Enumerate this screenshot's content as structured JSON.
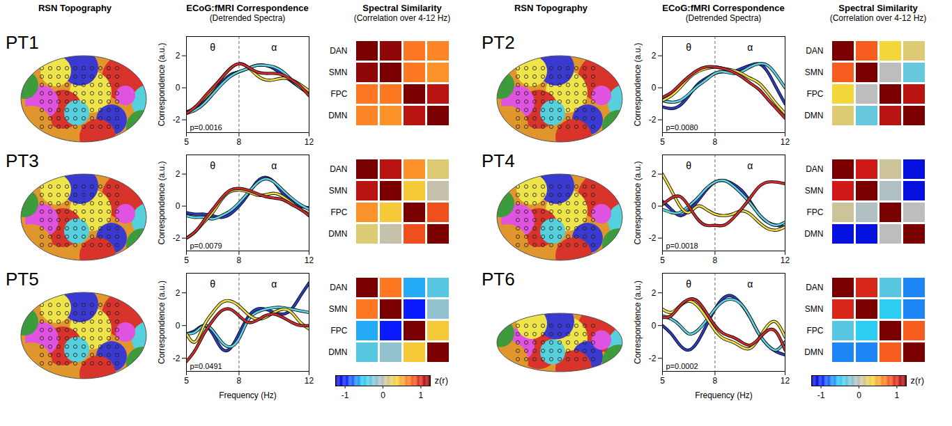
{
  "headers": [
    {
      "title": "RSN Topography"
    },
    {
      "title": "ECoG:fMRI Correspondence",
      "subtitle": "(Detrended Spectra)"
    },
    {
      "title": "Spectral Similarity",
      "subtitle": "(Correlation over 4-12 Hz)"
    }
  ],
  "panels": [
    "PT1",
    "PT2",
    "PT3",
    "PT4",
    "PT5",
    "PT6"
  ],
  "chart_data": [
    {
      "type": "line",
      "panel": "PT1",
      "ylabel": "Correspondence (a.u.)",
      "x": [
        5,
        5.5,
        6,
        6.5,
        7,
        7.5,
        8,
        8.5,
        9,
        9.5,
        10,
        10.5,
        11,
        11.5,
        12
      ],
      "xlim": [
        5,
        12
      ],
      "xticks": [
        5,
        8,
        12
      ],
      "ylim": [
        -2.8,
        3.2
      ],
      "yticks": [
        -2,
        0,
        2
      ],
      "bands": [
        {
          "label": "θ",
          "range": [
            4,
            8
          ]
        },
        {
          "label": "α",
          "range": [
            8,
            12
          ]
        }
      ],
      "annotation": "p=0.0016",
      "series": [
        {
          "color": "#2b3cc4",
          "values": [
            -1.5,
            -1.3,
            -0.9,
            -0.3,
            0.3,
            0.8,
            1.0,
            1.2,
            1.4,
            1.4,
            1.2,
            0.8,
            0.4,
            0,
            -0.4
          ]
        },
        {
          "color": "#5fd3e6",
          "values": [
            -1.6,
            -1.4,
            -1,
            -0.4,
            0.2,
            0.7,
            1.0,
            1.2,
            1.4,
            1.4,
            1.3,
            1.0,
            0.5,
            0,
            -0.3
          ]
        },
        {
          "color": "#f0df45",
          "values": [
            -1.6,
            -1.2,
            -0.7,
            -0.1,
            0.6,
            1.2,
            1.5,
            1.3,
            0.8,
            0.5,
            0.5,
            0.6,
            0.5,
            0.2,
            -0.2
          ]
        },
        {
          "color": "#d22b2b",
          "values": [
            -1.6,
            -1.2,
            -0.6,
            0,
            0.6,
            1.2,
            1.5,
            1.3,
            1.0,
            0.9,
            0.9,
            0.8,
            0.5,
            0.1,
            -0.5
          ]
        }
      ]
    },
    {
      "type": "heatmap",
      "panel": "PT1",
      "labels": [
        "DAN",
        "SMN",
        "FPC",
        "DMN"
      ],
      "tick_labels": "y",
      "color_range": [
        -1.25,
        1.25
      ],
      "cells": [
        [
          1.25,
          1.2,
          0.7,
          0.65
        ],
        [
          1.2,
          1.25,
          0.7,
          0.6
        ],
        [
          0.7,
          0.7,
          1.25,
          1.1
        ],
        [
          0.65,
          0.6,
          1.1,
          1.25
        ]
      ]
    },
    {
      "type": "line",
      "panel": "PT2",
      "ylabel": "Correspondence (a.u.)",
      "x": [
        5,
        5.5,
        6,
        6.5,
        7,
        7.5,
        8,
        8.5,
        9,
        9.5,
        10,
        10.5,
        11,
        11.5,
        12
      ],
      "xlim": [
        5,
        12
      ],
      "xticks": [
        5,
        8,
        12
      ],
      "ylim": [
        -2.8,
        3.2
      ],
      "yticks": [
        -2,
        0,
        2
      ],
      "bands": [
        {
          "label": "θ",
          "range": [
            4,
            8
          ]
        },
        {
          "label": "α",
          "range": [
            8,
            12
          ]
        }
      ],
      "annotation": "p=0.0080",
      "series": [
        {
          "color": "#2b3cc4",
          "values": [
            -1.2,
            -1.3,
            -1.1,
            -0.5,
            0.2,
            0.6,
            0.9,
            1.0,
            1.0,
            1.2,
            1.4,
            1.5,
            1.0,
            0,
            -1.0
          ]
        },
        {
          "color": "#5fd3e6",
          "values": [
            -0.8,
            -0.9,
            -0.8,
            -0.4,
            0.1,
            0.5,
            0.9,
            1.0,
            0.9,
            1.0,
            1.3,
            1.5,
            1.4,
            0.8,
            0
          ]
        },
        {
          "color": "#f0df45",
          "values": [
            -0.8,
            -0.5,
            0,
            0.6,
            1.0,
            1.2,
            1.3,
            1.2,
            1.1,
            0.9,
            0.6,
            0.3,
            -0.3,
            -1.0,
            -1.6
          ]
        },
        {
          "color": "#d22b2b",
          "values": [
            -0.6,
            -0.3,
            0.2,
            0.7,
            1.1,
            1.3,
            1.3,
            1.2,
            1.0,
            0.7,
            0.3,
            -0.1,
            -0.7,
            -1.3,
            -1.9
          ]
        }
      ]
    },
    {
      "type": "heatmap",
      "panel": "PT2",
      "labels": [
        "DAN",
        "SMN",
        "FPC",
        "DMN"
      ],
      "tick_labels": "y",
      "color_range": [
        -1.25,
        1.25
      ],
      "cells": [
        [
          1.25,
          0.8,
          0.35,
          0.2
        ],
        [
          0.8,
          1.25,
          0,
          -0.3
        ],
        [
          0.35,
          0,
          1.25,
          1.1
        ],
        [
          0.2,
          -0.3,
          1.1,
          1.25
        ]
      ]
    },
    {
      "type": "line",
      "panel": "PT3",
      "ylabel": "Correspondence (a.u.)",
      "x": [
        5,
        5.5,
        6,
        6.5,
        7,
        7.5,
        8,
        8.5,
        9,
        9.5,
        10,
        10.5,
        11,
        11.5,
        12
      ],
      "xlim": [
        5,
        12
      ],
      "xticks": [
        5,
        8,
        12
      ],
      "ylim": [
        -2.8,
        3.2
      ],
      "yticks": [
        -2,
        0,
        2
      ],
      "bands": [
        {
          "label": "θ",
          "range": [
            4,
            8
          ]
        },
        {
          "label": "α",
          "range": [
            8,
            12
          ]
        }
      ],
      "annotation": "p=0.0079",
      "series": [
        {
          "color": "#2b3cc4",
          "values": [
            -0.4,
            -0.5,
            -0.5,
            -0.6,
            -0.7,
            -0.5,
            0,
            0.7,
            1.5,
            1.8,
            1.5,
            0.8,
            0.3,
            0,
            -0.1
          ]
        },
        {
          "color": "#5fd3e6",
          "values": [
            -0.6,
            -0.7,
            -0.7,
            -0.8,
            -0.6,
            -0.3,
            0.2,
            0.8,
            1.4,
            1.7,
            1.5,
            1.0,
            0.5,
            0.1,
            -0.2
          ]
        },
        {
          "color": "#f0df45",
          "values": [
            -2.0,
            -1.6,
            -1.0,
            -0.4,
            0.4,
            0.9,
            1.0,
            0.9,
            0.7,
            0.7,
            0.8,
            0.6,
            0.2,
            -0.2,
            -0.5
          ]
        },
        {
          "color": "#d22b2b",
          "values": [
            -2.0,
            -1.6,
            -0.9,
            -0.2,
            0.5,
            1.0,
            1.1,
            1.0,
            0.8,
            0.6,
            0.5,
            0.4,
            0.1,
            -0.2,
            -0.6
          ]
        }
      ]
    },
    {
      "type": "heatmap",
      "panel": "PT3",
      "labels": [
        "DAN",
        "SMN",
        "FPC",
        "DMN"
      ],
      "tick_labels": "y",
      "color_range": [
        -1.25,
        1.25
      ],
      "cells": [
        [
          1.25,
          1.1,
          0.6,
          0.2
        ],
        [
          1.1,
          1.25,
          0.4,
          0.05
        ],
        [
          0.6,
          0.4,
          1.25,
          0.85
        ],
        [
          0.2,
          0.05,
          0.85,
          1.25
        ]
      ]
    },
    {
      "type": "line",
      "panel": "PT4",
      "ylabel": "Correspondence (a.u.)",
      "x": [
        5,
        5.5,
        6,
        6.5,
        7,
        7.5,
        8,
        8.5,
        9,
        9.5,
        10,
        10.5,
        11,
        11.5,
        12
      ],
      "xlim": [
        5,
        12
      ],
      "xticks": [
        5,
        8,
        12
      ],
      "ylim": [
        -2.8,
        3.2
      ],
      "yticks": [
        -2,
        0,
        2
      ],
      "bands": [
        {
          "label": "θ",
          "range": [
            4,
            8
          ]
        },
        {
          "label": "α",
          "range": [
            8,
            12
          ]
        }
      ],
      "annotation": "p=0.0018",
      "series": [
        {
          "color": "#2b3cc4",
          "values": [
            0.3,
            -0.2,
            -0.6,
            -0.3,
            0.3,
            1.0,
            1.5,
            1.6,
            1.4,
            1.0,
            0.3,
            -0.5,
            -1.0,
            -1.2,
            -1.3
          ]
        },
        {
          "color": "#5fd3e6",
          "values": [
            -0.2,
            -0.4,
            -0.4,
            0,
            0.5,
            1.1,
            1.5,
            1.6,
            1.3,
            0.8,
            0.2,
            -0.5,
            -1.0,
            -1.2,
            -1.0
          ]
        },
        {
          "color": "#f0df45",
          "values": [
            2.0,
            1.0,
            0,
            -0.4,
            0,
            -0.2,
            -0.5,
            -0.6,
            -0.5,
            -0.3,
            -0.5,
            -1.0,
            -1.4,
            -1.5,
            -1.3
          ]
        },
        {
          "color": "#d22b2b",
          "values": [
            0.1,
            0.5,
            0.6,
            0,
            -0.8,
            -1.2,
            -1.2,
            -1.2,
            -0.8,
            -0.2,
            0.5,
            1.2,
            1.5,
            1.5,
            1.4
          ]
        }
      ]
    },
    {
      "type": "heatmap",
      "panel": "PT4",
      "labels": [
        "DAN",
        "SMN",
        "FPC",
        "DMN"
      ],
      "tick_labels": "y",
      "color_range": [
        -1.25,
        1.25
      ],
      "cells": [
        [
          1.25,
          1.05,
          0.1,
          -1.1
        ],
        [
          1.05,
          1.25,
          -0.05,
          -1.1
        ],
        [
          0.1,
          -0.05,
          1.25,
          0
        ],
        [
          -1.1,
          -1.1,
          0,
          1.25
        ]
      ]
    },
    {
      "type": "line",
      "panel": "PT5",
      "ylabel": "Correspondence (a.u.)",
      "xlabel": "Frequency (Hz)",
      "x": [
        5,
        5.5,
        6,
        6.5,
        7,
        7.5,
        8,
        8.5,
        9,
        9.5,
        10,
        10.5,
        11,
        11.5,
        12
      ],
      "xlim": [
        5,
        12
      ],
      "xticks": [
        5,
        8,
        12
      ],
      "ylim": [
        -2.8,
        3.2
      ],
      "yticks": [
        -2,
        0,
        2
      ],
      "bands": [
        {
          "label": "θ",
          "range": [
            4,
            8
          ]
        },
        {
          "label": "α",
          "range": [
            8,
            12
          ]
        }
      ],
      "annotation": "p=0.0491",
      "series": [
        {
          "color": "#2b3cc4",
          "values": [
            -0.5,
            -0.3,
            0,
            -0.5,
            -1.4,
            -1.4,
            -0.5,
            0.5,
            1.0,
            1.0,
            0.8,
            0.7,
            1.0,
            1.8,
            2.6
          ]
        },
        {
          "color": "#5fd3e6",
          "values": [
            -0.5,
            -0.4,
            0,
            -0.3,
            -1.0,
            -1.3,
            -0.8,
            0.3,
            0.8,
            1.0,
            1.1,
            1.1,
            1.0,
            0.9,
            0.8
          ]
        },
        {
          "color": "#f0df45",
          "values": [
            -0.5,
            -1.0,
            0,
            0.8,
            1.4,
            1.5,
            1.2,
            0.7,
            0.4,
            0.5,
            0.8,
            1.0,
            0.8,
            0.2,
            -0.2
          ]
        },
        {
          "color": "#d22b2b",
          "values": [
            -2.2,
            -1.5,
            -0.5,
            0.3,
            0.9,
            1.0,
            0.6,
            0.2,
            0.3,
            0.6,
            0.7,
            0.5,
            0.2,
            0,
            0
          ]
        }
      ]
    },
    {
      "type": "heatmap",
      "panel": "PT5",
      "labels": [
        "DAN",
        "SMN",
        "FPC",
        "DMN"
      ],
      "tick_labels": "y",
      "color_range": [
        -1.25,
        1.25
      ],
      "colorbar": {
        "ticks": [
          -1,
          0,
          1
        ],
        "label": "z(r)"
      },
      "cells": [
        [
          1.25,
          0.7,
          -0.6,
          -0.35
        ],
        [
          0.7,
          1.25,
          -1.0,
          -0.15
        ],
        [
          -0.6,
          -1.0,
          1.25,
          0.4
        ],
        [
          -0.35,
          -0.15,
          0.4,
          1.25
        ]
      ]
    },
    {
      "type": "line",
      "panel": "PT6",
      "ylabel": "Correspondence (a.u.)",
      "xlabel": "Frequency (Hz)",
      "x": [
        5,
        5.5,
        6,
        6.5,
        7,
        7.5,
        8,
        8.5,
        9,
        9.5,
        10,
        10.5,
        11,
        11.5,
        12
      ],
      "xlim": [
        5,
        12
      ],
      "xticks": [
        5,
        8,
        12
      ],
      "ylim": [
        -2.8,
        3.2
      ],
      "yticks": [
        -2,
        0,
        2
      ],
      "bands": [
        {
          "label": "θ",
          "range": [
            4,
            8
          ]
        },
        {
          "label": "α",
          "range": [
            8,
            12
          ]
        }
      ],
      "annotation": "p=0.0002",
      "series": [
        {
          "color": "#2b3cc4",
          "values": [
            0,
            -0.5,
            -1.2,
            -1.5,
            -1,
            0,
            1.0,
            1.7,
            1.8,
            1.3,
            0.5,
            -0.5,
            -1.2,
            -1.6,
            -1.8
          ]
        },
        {
          "color": "#5fd3e6",
          "values": [
            0.6,
            0.4,
            0,
            -0.5,
            -0.3,
            0.3,
            1.0,
            1.5,
            1.6,
            1.3,
            0.5,
            -0.5,
            -1.2,
            -1.5,
            -1.0
          ]
        },
        {
          "color": "#f0df45",
          "values": [
            1.0,
            0.8,
            1.2,
            1.5,
            1.2,
            0.5,
            -0.3,
            -0.8,
            -1.0,
            -1.3,
            -1.4,
            -0.8,
            0,
            0.2,
            -0.7
          ]
        },
        {
          "color": "#d22b2b",
          "values": [
            0.5,
            0.6,
            1.2,
            1.6,
            1.5,
            0.8,
            0,
            -0.5,
            -0.7,
            -1.0,
            -1.2,
            -0.8,
            -0.3,
            -0.4,
            -1.5
          ]
        }
      ]
    },
    {
      "type": "heatmap",
      "panel": "PT6",
      "labels": [
        "DAN",
        "SMN",
        "FPC",
        "DMN"
      ],
      "tick_labels": "y",
      "color_range": [
        -1.25,
        1.25
      ],
      "colorbar": {
        "ticks": [
          -1,
          0,
          1
        ],
        "label": "z(r)"
      },
      "cells": [
        [
          1.25,
          1.0,
          -0.35,
          -0.7
        ],
        [
          1.0,
          1.25,
          -0.5,
          -0.7
        ],
        [
          -0.35,
          -0.5,
          1.25,
          0.8
        ],
        [
          -0.7,
          -0.7,
          0.8,
          1.25
        ]
      ]
    }
  ]
}
